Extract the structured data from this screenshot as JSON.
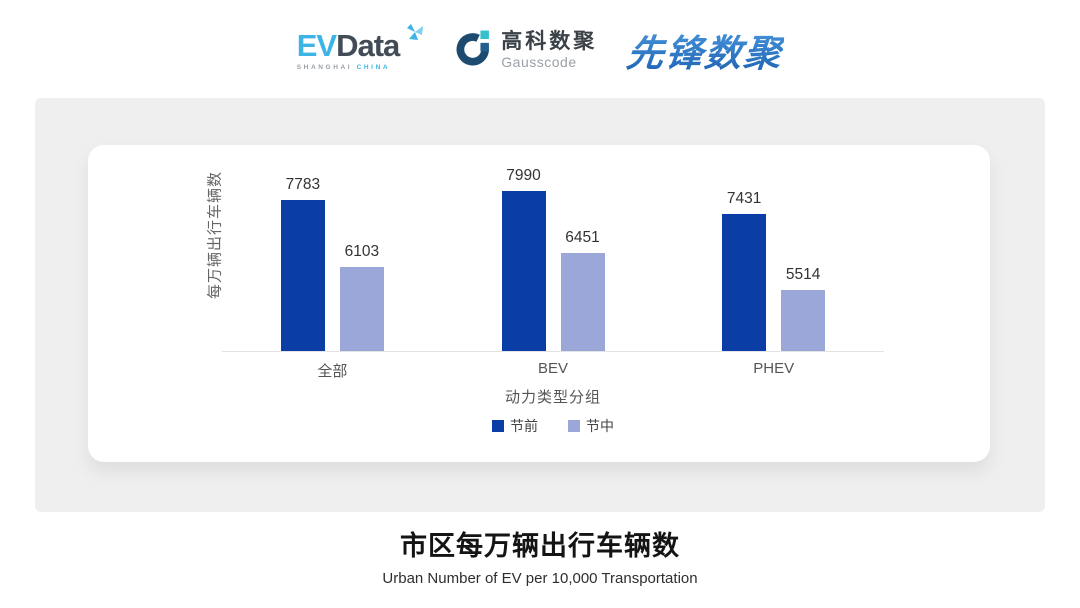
{
  "header": {
    "evdata": {
      "part1": "EV",
      "part2": "Data",
      "sub_left": "SHANGHAI",
      "sub_right": "CHINA"
    },
    "gausscode": {
      "cn": "高科数聚",
      "en": "Gausscode"
    },
    "pioneer": {
      "text": "先锋数聚"
    }
  },
  "chart_data": {
    "type": "bar",
    "categories": [
      "全部",
      "BEV",
      "PHEV"
    ],
    "series": [
      {
        "name": "节前",
        "color": "#0B3DA6",
        "values": [
          7783,
          7990,
          7431
        ]
      },
      {
        "name": "节中",
        "color": "#9BA6D9",
        "values": [
          6103,
          6451,
          5514
        ]
      }
    ],
    "ylabel": "每万辆出行车辆数",
    "xlabel": "动力类型分组",
    "ylim": [
      4000,
      9000
    ],
    "grid": false,
    "legend_position": "bottom",
    "value_labels": true
  },
  "footer": {
    "title": "市区每万辆出行车辆数",
    "subtitle": "Urban Number of EV per 10,000 Transportation"
  },
  "colors": {
    "panel_bg": "#EFEFEF",
    "axis_line": "#E3E3E3",
    "evdata_blue": "#3CB4E5",
    "evdata_dark": "#414C56",
    "gauss_navy": "#1D4B70",
    "gauss_cyan": "#35C0CE",
    "gauss_mid_blue": "#235E91",
    "pioneer_blue": "#2E7CC6"
  }
}
